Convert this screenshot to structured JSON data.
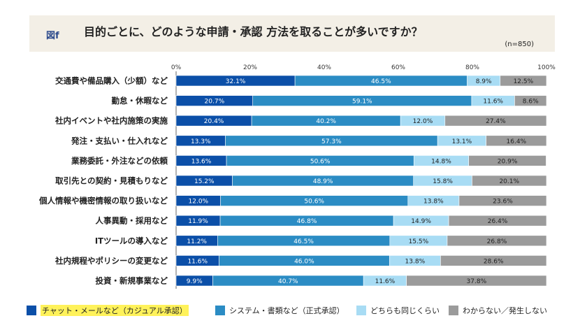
{
  "header": {
    "fig_label": "図f",
    "title": "目的ごとに、どのような申請・承認 方法を取ることが多いですか？",
    "n": "(n=850)"
  },
  "chart_data": {
    "type": "bar",
    "orientation": "horizontal",
    "stacked": true,
    "xlim": [
      0,
      100
    ],
    "x_ticks": [
      "0%",
      "20%",
      "40%",
      "60%",
      "80%",
      "100%"
    ],
    "grid": false,
    "legend_position": "bottom",
    "categories": [
      "交通費や備品購入（少額）など",
      "勤怠・休暇など",
      "社内イベントや社内施策の実施",
      "発注・支払い・仕入れなど",
      "業務委託・外注などの依頼",
      "取引先との契約・見積もりなど",
      "個人情報や機密情報の取り扱いなど",
      "人事異動・採用など",
      "ITツールの導入など",
      "社内規程やポリシーの変更など",
      "投資・新規事業など"
    ],
    "series": [
      {
        "name": "チャット・メールなど（カジュアル承認）",
        "color": "#0b4fa8",
        "label_color": "#ffffff",
        "values": [
          32.1,
          20.7,
          20.4,
          13.3,
          13.6,
          15.2,
          12.0,
          11.9,
          11.2,
          11.6,
          9.9
        ]
      },
      {
        "name": "システム・書類など（正式承認）",
        "color": "#2b8cc4",
        "label_color": "#ffffff",
        "values": [
          46.5,
          59.1,
          40.2,
          57.3,
          50.6,
          48.9,
          50.6,
          46.8,
          46.5,
          46.0,
          40.7
        ]
      },
      {
        "name": "どちらも同じくらい",
        "color": "#a8dcf4",
        "label_color": "#222222",
        "values": [
          8.9,
          11.6,
          12.0,
          13.1,
          14.8,
          15.8,
          13.8,
          14.9,
          15.5,
          13.8,
          11.6
        ]
      },
      {
        "name": "わからない／発生しない",
        "color": "#9b9b9b",
        "label_color": "#222222",
        "values": [
          12.5,
          8.6,
          27.4,
          16.4,
          20.9,
          20.1,
          23.6,
          26.4,
          26.8,
          28.6,
          37.8
        ]
      }
    ]
  }
}
